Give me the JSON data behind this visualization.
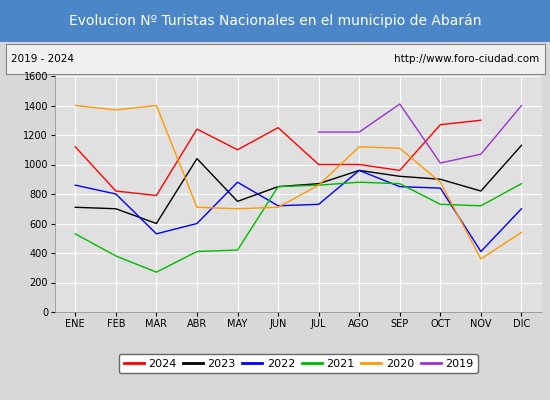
{
  "title": "Evolucion Nº Turistas Nacionales en el municipio de Abarán",
  "subtitle_left": "2019 - 2024",
  "subtitle_right": "http://www.foro-ciudad.com",
  "title_bg_color": "#4a86c8",
  "title_text_color": "#ffffff",
  "months": [
    "ENE",
    "FEB",
    "MAR",
    "ABR",
    "MAY",
    "JUN",
    "JUL",
    "AGO",
    "SEP",
    "OCT",
    "NOV",
    "DIC"
  ],
  "ylim": [
    0,
    1600
  ],
  "yticks": [
    0,
    200,
    400,
    600,
    800,
    1000,
    1200,
    1400,
    1600
  ],
  "series": {
    "2024": {
      "color": "#ff0000",
      "values": [
        1120,
        820,
        790,
        1240,
        1100,
        1250,
        1000,
        1000,
        960,
        1270,
        1300,
        null
      ]
    },
    "2023": {
      "color": "#000000",
      "values": [
        710,
        700,
        600,
        1040,
        750,
        850,
        870,
        960,
        920,
        900,
        820,
        1130
      ]
    },
    "2022": {
      "color": "#0000ff",
      "values": [
        860,
        800,
        530,
        600,
        880,
        720,
        730,
        960,
        850,
        840,
        410,
        700
      ]
    },
    "2021": {
      "color": "#00bb00",
      "values": [
        530,
        380,
        270,
        410,
        420,
        850,
        860,
        880,
        870,
        730,
        720,
        870
      ]
    },
    "2020": {
      "color": "#ff9900",
      "values": [
        1400,
        1370,
        1400,
        710,
        700,
        710,
        860,
        1120,
        1110,
        880,
        360,
        540
      ]
    },
    "2019": {
      "color": "#9933cc",
      "values": [
        null,
        null,
        null,
        null,
        null,
        null,
        1220,
        1220,
        1410,
        1010,
        1070,
        1400
      ]
    }
  },
  "legend_order": [
    "2024",
    "2023",
    "2022",
    "2021",
    "2020",
    "2019"
  ],
  "outer_bg_color": "#d8d8d8",
  "plot_bg_color": "#e0e0e0",
  "grid_color": "#ffffff",
  "subtitle_box_color": "#f0f0f0",
  "title_font_size": 10,
  "subtitle_font_size": 7.5,
  "tick_font_size": 7,
  "legend_font_size": 8
}
